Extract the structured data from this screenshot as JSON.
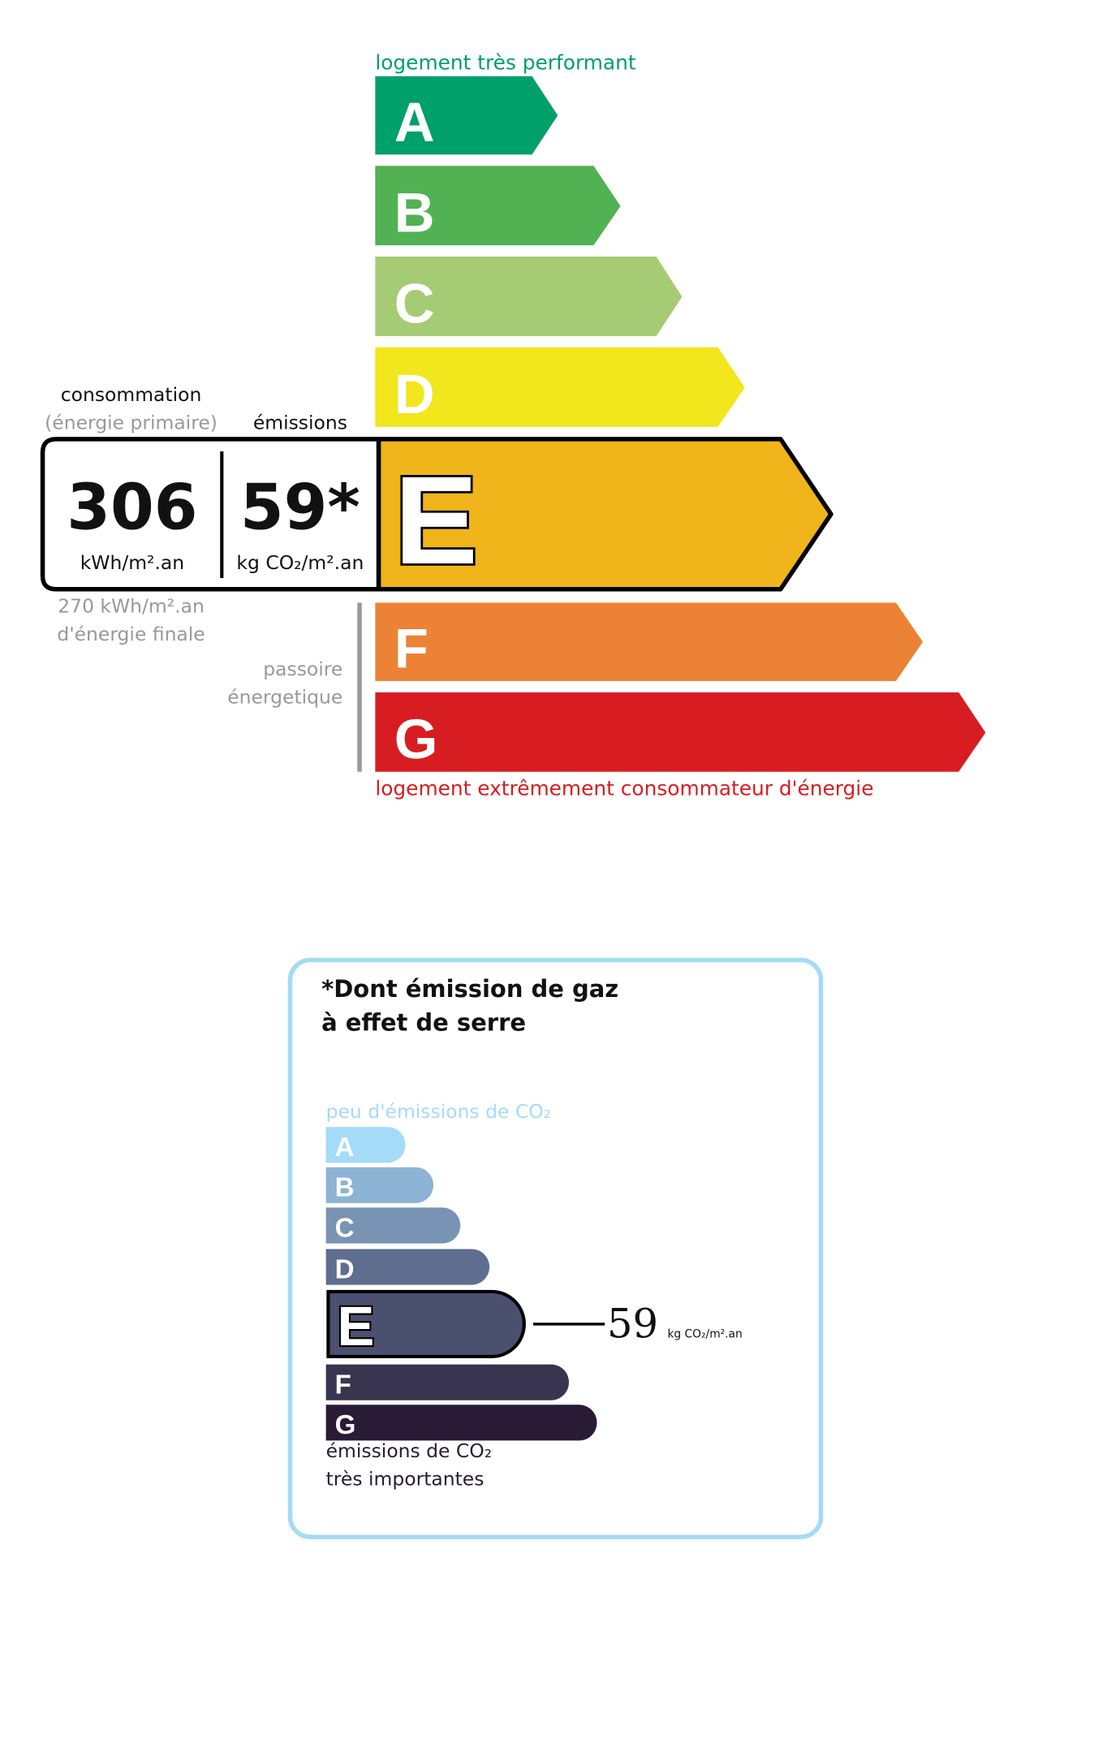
{
  "energy": {
    "top_label": "logement très performant",
    "bottom_label": "logement extrêmement consommateur d'énergie",
    "classes": [
      {
        "letter": "A",
        "color": "#00a06a"
      },
      {
        "letter": "B",
        "color": "#51b153"
      },
      {
        "letter": "C",
        "color": "#a5cc74"
      },
      {
        "letter": "D",
        "color": "#f2e61c"
      },
      {
        "letter": "E",
        "color": "#f0b51a"
      },
      {
        "letter": "F",
        "color": "#ec8235"
      },
      {
        "letter": "G",
        "color": "#d71d21"
      }
    ],
    "current_class": "E",
    "consumption_title": "consommation",
    "consumption_subtitle": "(énergie primaire)",
    "emissions_title": "émissions",
    "consumption_value": "306",
    "consumption_unit": "kWh/m².an",
    "emissions_value": "59*",
    "emissions_unit": "kg CO₂/m².an",
    "final_energy_line1": "270 kWh/m².an",
    "final_energy_line2": "d'énergie finale",
    "passoire_line1": "passoire",
    "passoire_line2": "énergetique"
  },
  "ghg": {
    "title_line1": "*Dont émission de gaz",
    "title_line2": "à effet de serre",
    "top_label": "peu d'émissions de CO₂",
    "bottom_label_line1": "émissions de CO₂",
    "bottom_label_line2": "très importantes",
    "classes": [
      {
        "letter": "A",
        "color": "#a4dbf8"
      },
      {
        "letter": "B",
        "color": "#8db3d5"
      },
      {
        "letter": "C",
        "color": "#7893b3"
      },
      {
        "letter": "D",
        "color": "#5f6e8f"
      },
      {
        "letter": "E",
        "color": "#4c506f"
      },
      {
        "letter": "F",
        "color": "#393551"
      },
      {
        "letter": "G",
        "color": "#291b35"
      }
    ],
    "current_class": "E",
    "value": "59",
    "unit": "kg CO₂/m².an",
    "border_color": "#a4dbf7"
  }
}
